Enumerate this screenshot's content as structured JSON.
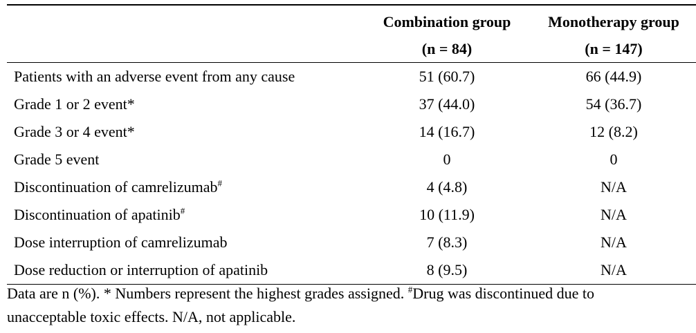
{
  "table": {
    "columns": [
      {
        "title": "Combination group",
        "subtitle": "(n = 84)"
      },
      {
        "title": "Monotherapy group",
        "subtitle": "(n = 147)"
      }
    ],
    "rows": [
      {
        "label": "Patients with an adverse event from any cause",
        "sup": "",
        "combination": "51 (60.7)",
        "monotherapy": "66 (44.9)"
      },
      {
        "label": "Grade 1 or 2 event*",
        "sup": "",
        "combination": "37 (44.0)",
        "monotherapy": "54 (36.7)"
      },
      {
        "label": "Grade 3 or 4 event*",
        "sup": "",
        "combination": "14 (16.7)",
        "monotherapy": "12 (8.2)"
      },
      {
        "label": "Grade 5 event",
        "sup": "",
        "combination": "0",
        "monotherapy": "0"
      },
      {
        "label": "Discontinuation of camrelizumab",
        "sup": "#",
        "combination": "4 (4.8)",
        "monotherapy": "N/A"
      },
      {
        "label": "Discontinuation of apatinib",
        "sup": "#",
        "combination": "10 (11.9)",
        "monotherapy": "N/A"
      },
      {
        "label": "Dose interruption of camrelizumab",
        "sup": "",
        "combination": "7 (8.3)",
        "monotherapy": "N/A"
      },
      {
        "label": "Dose reduction or interruption of apatinib",
        "sup": "",
        "combination": "8 (9.5)",
        "monotherapy": "N/A"
      }
    ]
  },
  "footnote": {
    "part1": "Data are n (%). * Numbers represent the highest grades assigned. ",
    "sup": "#",
    "part2": "Drug was discontinued due to unacceptable toxic effects. N/A, not applicable."
  }
}
